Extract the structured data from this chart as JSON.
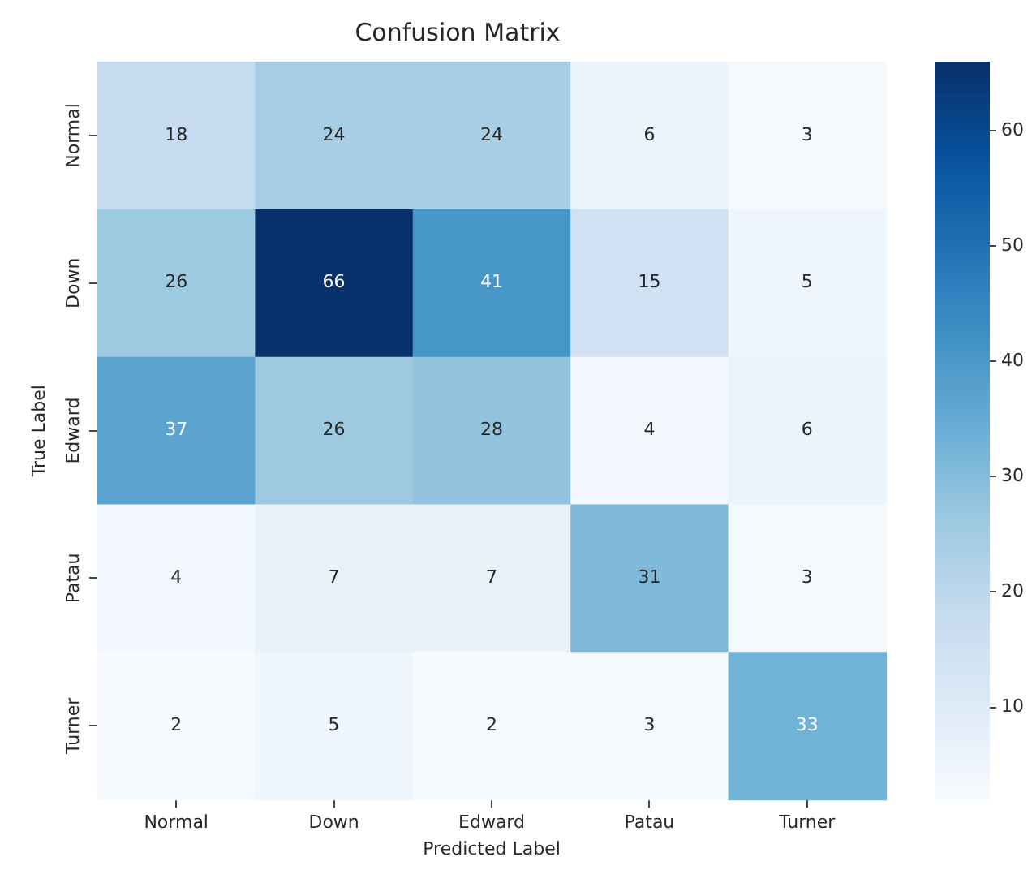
{
  "chart_data": {
    "type": "heatmap",
    "title": "Confusion Matrix",
    "xlabel": "Predicted Label",
    "ylabel": "True Label",
    "categories": [
      "Normal",
      "Down",
      "Edward",
      "Patau",
      "Turner"
    ],
    "y_categories": [
      "Normal",
      "Down",
      "Edward",
      "Patau",
      "Turner"
    ],
    "cells": [
      [
        18,
        24,
        24,
        6,
        3
      ],
      [
        26,
        66,
        41,
        15,
        5
      ],
      [
        37,
        26,
        28,
        4,
        6
      ],
      [
        4,
        7,
        7,
        31,
        3
      ],
      [
        2,
        5,
        2,
        3,
        33
      ]
    ],
    "clim": [
      2,
      66
    ],
    "cticks": [
      10,
      20,
      30,
      40,
      50,
      60
    ],
    "data_labels": true
  }
}
